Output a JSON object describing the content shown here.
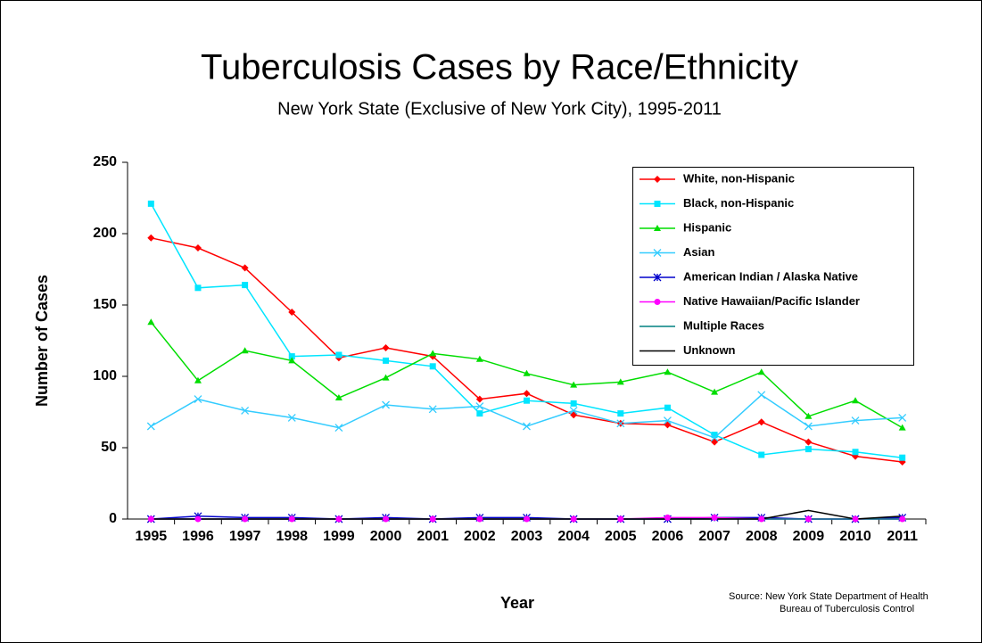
{
  "chart_data": {
    "type": "line",
    "title": "Tuberculosis Cases by Race/Ethnicity",
    "subtitle": "New York State (Exclusive of New York City), 1995-2011",
    "x_label": "Year",
    "y_label": "Number of Cases",
    "source": [
      "Source:   New York State Department of Health",
      "Bureau of Tuberculosis Control"
    ],
    "categories": [
      "1995",
      "1996",
      "1997",
      "1998",
      "1999",
      "2000",
      "2001",
      "2002",
      "2003",
      "2004",
      "2005",
      "2006",
      "2007",
      "2008",
      "2009",
      "2010",
      "2011"
    ],
    "ylim": [
      0,
      250
    ],
    "yticks": [
      0,
      50,
      100,
      150,
      200,
      250
    ],
    "legend": "upper right",
    "series": [
      {
        "name": "White, non-Hispanic",
        "color": "#ff0000",
        "marker": "diamond",
        "values": [
          197,
          190,
          176,
          145,
          113,
          120,
          114,
          84,
          88,
          73,
          67,
          66,
          54,
          68,
          54,
          44,
          40
        ]
      },
      {
        "name": "Black, non-Hispanic",
        "color": "#00e5ff",
        "marker": "square",
        "values": [
          221,
          162,
          164,
          114,
          115,
          111,
          107,
          74,
          83,
          81,
          74,
          78,
          59,
          45,
          49,
          47,
          43
        ]
      },
      {
        "name": "Hispanic",
        "color": "#00dd00",
        "marker": "triangle",
        "values": [
          138,
          97,
          118,
          111,
          85,
          99,
          116,
          112,
          102,
          94,
          96,
          103,
          89,
          103,
          72,
          83,
          64
        ]
      },
      {
        "name": "Asian",
        "color": "#33ccff",
        "marker": "x",
        "values": [
          65,
          84,
          76,
          71,
          64,
          80,
          77,
          79,
          65,
          76,
          67,
          69,
          57,
          87,
          65,
          69,
          71
        ]
      },
      {
        "name": "American Indian / Alaska Native",
        "color": "#0000cc",
        "marker": "star",
        "values": [
          0,
          2,
          1,
          1,
          0,
          1,
          0,
          1,
          1,
          0,
          0,
          0,
          1,
          1,
          0,
          0,
          1
        ]
      },
      {
        "name": "Native Hawaiian/Pacific Islander",
        "color": "#ff00ff",
        "marker": "circle",
        "values": [
          0,
          0,
          0,
          0,
          0,
          0,
          0,
          0,
          0,
          0,
          0,
          1,
          1,
          0,
          0,
          0,
          0
        ]
      },
      {
        "name": "Multiple Races",
        "color": "#008080",
        "marker": "none",
        "values": [
          0,
          0,
          0,
          0,
          0,
          0,
          0,
          0,
          0,
          0,
          0,
          0,
          0,
          0,
          0,
          0,
          0
        ]
      },
      {
        "name": "Unknown",
        "color": "#000000",
        "marker": "none",
        "values": [
          0,
          0,
          0,
          0,
          0,
          0,
          0,
          0,
          0,
          0,
          0,
          0,
          0,
          0,
          6,
          0,
          2
        ]
      }
    ]
  }
}
